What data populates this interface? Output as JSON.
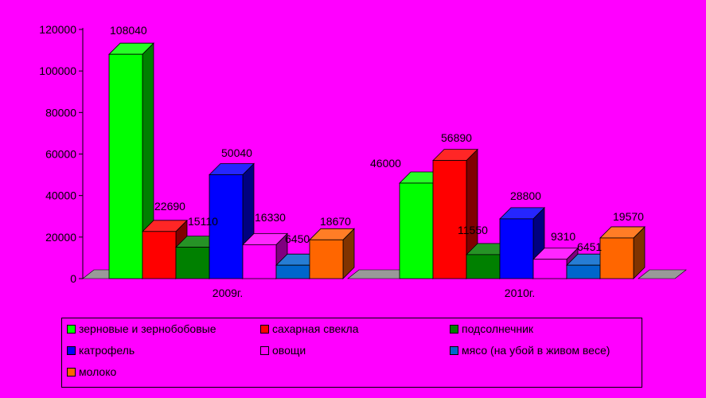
{
  "chart_data": {
    "type": "bar",
    "style": "3d-clustered",
    "categories": [
      "2009г.",
      "2010г."
    ],
    "series": [
      {
        "name": "зерновые и зернобобовые",
        "values": [
          108040,
          46000
        ],
        "color": "#00ff00"
      },
      {
        "name": "сахарная свекла",
        "values": [
          22690,
          56890
        ],
        "color": "#ff0000"
      },
      {
        "name": "подсолнечник",
        "values": [
          15110,
          11550
        ],
        "color": "#008000"
      },
      {
        "name": "катрофель",
        "values": [
          50040,
          28800
        ],
        "color": "#0000ff"
      },
      {
        "name": "овощи",
        "values": [
          16330,
          9310
        ],
        "color": "#ff00ff"
      },
      {
        "name": "мясо (на убой в живом весе)",
        "values": [
          6450,
          6451
        ],
        "color": "#0066cc"
      },
      {
        "name": "молоко",
        "values": [
          18670,
          19570
        ],
        "color": "#ff6600"
      }
    ],
    "data_labels": [
      [
        "108040",
        "46000"
      ],
      [
        "22690",
        "56890"
      ],
      [
        "15110",
        "11550"
      ],
      [
        "50040",
        "28800"
      ],
      [
        "16330",
        "9310"
      ],
      [
        "6450",
        "6451"
      ],
      [
        "18670",
        "19570"
      ]
    ],
    "ylim": [
      0,
      120000
    ],
    "yticks": [
      "0",
      "20000",
      "40000",
      "60000",
      "80000",
      "100000",
      "120000"
    ],
    "title": "",
    "xlabel": "",
    "ylabel": "",
    "grid": false,
    "legend_position": "bottom"
  },
  "background_color": "#ff00ff"
}
